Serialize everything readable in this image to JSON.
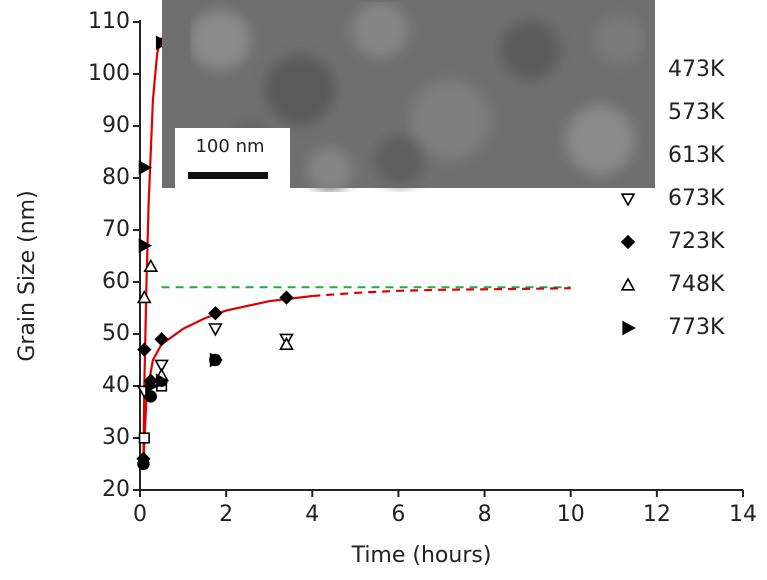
{
  "chart_data": {
    "type": "scatter",
    "x_label": "Time (hours)",
    "y_label": "Grain Size (nm)",
    "xlim": [
      0,
      14
    ],
    "xticks": [
      0,
      2,
      4,
      6,
      8,
      10,
      12,
      14
    ],
    "ylim": [
      20,
      110
    ],
    "yticks": [
      20,
      30,
      40,
      50,
      60,
      70,
      80,
      90,
      100,
      110
    ],
    "inset_label": "100 nm",
    "series": [
      {
        "name": "473K",
        "color": "#000000",
        "marker": "circle",
        "filled": true,
        "x": [
          0.08,
          0.25
        ],
        "values": [
          25,
          38
        ]
      },
      {
        "name": "573K",
        "color": "#000000",
        "marker": "square",
        "filled": false,
        "x": [
          0.1,
          0.5
        ],
        "values": [
          30,
          40
        ]
      },
      {
        "name": "613K",
        "color": "#000000",
        "marker": "circle",
        "filled": true,
        "x": [
          0.5,
          1.75
        ],
        "values": [
          41,
          45
        ]
      },
      {
        "name": "673K",
        "color": "#000000",
        "marker": "down",
        "filled": false,
        "x": [
          0.1,
          0.5,
          1.75,
          3.4
        ],
        "values": [
          39,
          44,
          51,
          49
        ]
      },
      {
        "name": "723K",
        "color": "#000000",
        "marker": "diamond",
        "filled": true,
        "x": [
          0.08,
          0.1,
          0.25,
          0.5,
          1.75,
          3.4
        ],
        "values": [
          26,
          47,
          41,
          49,
          54,
          57
        ]
      },
      {
        "name": "748K",
        "color": "#000000",
        "marker": "up",
        "filled": false,
        "x": [
          0.1,
          0.25,
          0.5,
          3.4
        ],
        "values": [
          57,
          63,
          42,
          48
        ]
      },
      {
        "name": "773K",
        "color": "#000000",
        "marker": "right",
        "filled": true,
        "x": [
          0.1,
          0.1,
          0.25,
          0.5,
          1.75,
          0.5
        ],
        "values": [
          82,
          67,
          40,
          41,
          45,
          106
        ]
      }
    ],
    "fit_lines": [
      {
        "color": "#e00000",
        "dashed": false,
        "x": [
          0.08,
          0.1,
          0.15,
          0.2,
          0.3,
          0.4,
          0.5
        ],
        "values": [
          25,
          40,
          60,
          75,
          95,
          104,
          107
        ]
      },
      {
        "color": "#e00000",
        "dashed": false,
        "x": [
          0.08,
          0.15,
          0.3,
          0.5,
          1,
          1.5,
          2,
          3,
          4
        ],
        "values": [
          25,
          38,
          45,
          48,
          51,
          53,
          54.5,
          56.3,
          57.3
        ]
      },
      {
        "color": "#e00000",
        "dashed": true,
        "x": [
          4,
          5,
          6,
          7,
          8,
          9,
          10
        ],
        "values": [
          57.3,
          57.9,
          58.3,
          58.5,
          58.6,
          58.7,
          58.8
        ]
      }
    ],
    "reference_lines": [
      {
        "color": "#22aa44",
        "dashed": true,
        "y": 59,
        "x": [
          0.5,
          10
        ]
      }
    ]
  }
}
